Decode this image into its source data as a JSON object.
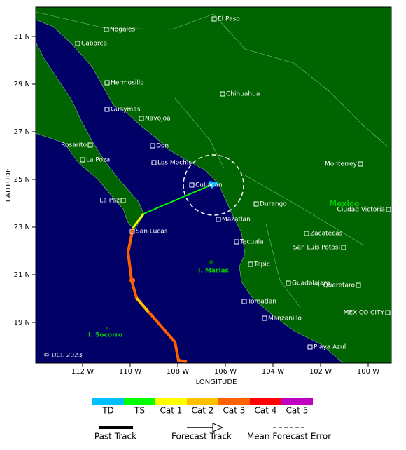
{
  "map": {
    "axis_labels": {
      "y": "LATITUDE",
      "x": "LONGITUDE"
    },
    "lat_ticks": [
      "31 N",
      "29 N",
      "27 N",
      "25 N",
      "23 N",
      "21 N",
      "19 N"
    ],
    "lon_ticks": [
      "112 W",
      "110 W",
      "108 W",
      "106 W",
      "104 W",
      "102 W",
      "100 W"
    ],
    "cities": [
      "El Paso",
      "Nogales",
      "Caborca",
      "Hermosillo",
      "Chihuahua",
      "Guaymas",
      "Navojoa",
      "Don",
      "Rosarito",
      "La Poza",
      "Los Mochis",
      "Culiacan",
      "Monterrey",
      "La Paz",
      "Durango",
      "Ciudad Victoria",
      "Mazatlan",
      "San Lucas",
      "Zacatecas",
      "Tecuala",
      "San Luis Potosi",
      "Tepic",
      "Guadalajara",
      "Queretaro",
      "Tomatlan",
      "MEXICO CITY",
      "Manzanillo",
      "Playa Azul"
    ],
    "regions": [
      "Mexico",
      "I. Marias",
      "I. Socorro"
    ],
    "credit": "© UCL 2023"
  },
  "legend": {
    "intensity": [
      {
        "label": "TD",
        "color": "#00bfff"
      },
      {
        "label": "TS",
        "color": "#00ff00"
      },
      {
        "label": "Cat 1",
        "color": "#ffff00"
      },
      {
        "label": "Cat 2",
        "color": "#ffc000"
      },
      {
        "label": "Cat 3",
        "color": "#ff6000"
      },
      {
        "label": "Cat 4",
        "color": "#ff0000"
      },
      {
        "label": "Cat 5",
        "color": "#c000c0"
      }
    ],
    "tracks": [
      "Past Track",
      "Forecast Track",
      "Mean Forecast Error"
    ]
  }
}
